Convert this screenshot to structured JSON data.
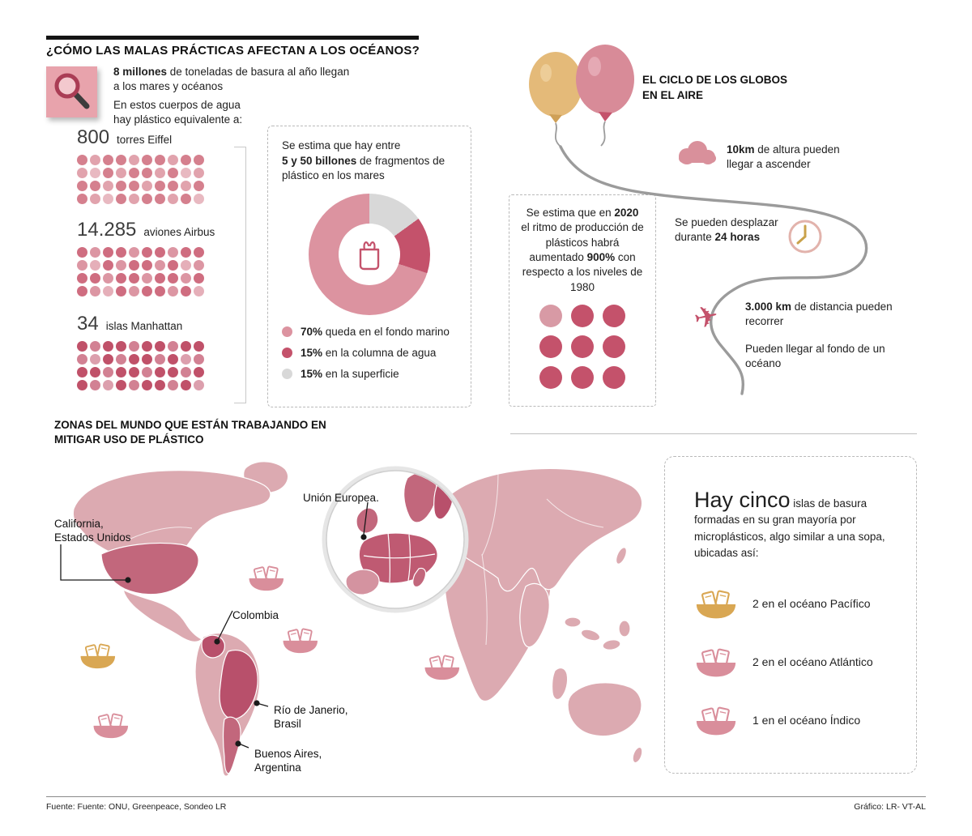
{
  "header": {
    "title": "¿CÓMO LAS MALAS PRÁCTICAS AFECTAN A LOS OCÉANOS?"
  },
  "palette": {
    "crimson": "#c4526b",
    "rose": "#d98a96",
    "rose_light": "#dc93a0",
    "map_light": "#dcaab1",
    "map_highlight": "#c2677c",
    "gold": "#d9a753",
    "gray_segment": "#d8d8d8"
  },
  "intro": {
    "stat_bold": "8 millones",
    "stat_rest": " de toneladas de basura al año llegan a los mares y océanos",
    "equiv_lead": "En estos cuerpos de agua hay plástico equivalente a:"
  },
  "equivalents": [
    {
      "value": "800",
      "label": "torres Eiffel",
      "dots": 40,
      "dot_color": "#d5808e"
    },
    {
      "value": "14.285",
      "label": "aviones Airbus",
      "dots": 40,
      "dot_color": "#cf6d80"
    },
    {
      "value": "34",
      "label": "islas Manhattan",
      "dots": 40,
      "dot_color": "#c05169"
    }
  ],
  "fragments_box": {
    "text_pre": "Se estima que hay entre",
    "text_bold": "5 y 50 billones",
    "text_post": " de fragmentos de plástico en los mares",
    "legend": [
      {
        "pct": "70%",
        "label": " queda en el fondo marino"
      },
      {
        "pct": "15%",
        "label": " en la columna de agua"
      },
      {
        "pct": "15%",
        "label": " en la superficie"
      }
    ]
  },
  "balloon_cycle": {
    "title": "EL CICLO DE LOS GLOBOS EN EL AIRE",
    "step1_bold": "10km",
    "step1_rest": " de altura pueden llegar a ascender",
    "step2_pre": "Se pueden desplazar durante ",
    "step2_bold": "24 horas",
    "step3_bold": "3.000 km",
    "step3_rest": " de distancia pueden recorrer",
    "step4": "Pueden llegar al fondo de un océano"
  },
  "production_box": {
    "text_pre": "Se estima que en ",
    "text_bold1": "2020",
    "text_mid": " el ritmo de producción de plásticos habrá aumentado ",
    "text_bold2": "900%",
    "text_post": " con respecto a los niveles de 1980",
    "dot_colors": [
      "#d89aa5",
      "#c4526b",
      "#c4526b",
      "#c4526b",
      "#c4526b",
      "#c4526b",
      "#c4526b",
      "#c4526b",
      "#c4526b"
    ]
  },
  "map_section": {
    "title": "ZONAS DEL MUNDO QUE ESTÁN TRABAJANDO EN MITIGAR USO DE PLÁSTICO",
    "labels": {
      "california": "California, Estados Unidos",
      "europe": "Unión Europea.",
      "colombia": "Colombia",
      "rio": "Río de Janerio, Brasil",
      "buenos_aires": "Buenos Aires, Argentina"
    }
  },
  "islands_box": {
    "lead_big": "Hay cinco",
    "lead_rest": " islas de basura formadas en su gran mayoría por microplásticos, algo similar a una sopa, ubicadas así:",
    "items": [
      {
        "label": "2 en el océano Pacífico",
        "color": "#d9a753"
      },
      {
        "label": "2 en el océano Atlántico",
        "color": "#d98e9b"
      },
      {
        "label": "1 en el océano Índico",
        "color": "#d98e9b"
      }
    ]
  },
  "footer": {
    "source": "Fuente: Fuente: ONU, Greenpeace, Sondeo LR",
    "credit": "Gráfico: LR- VT-AL"
  },
  "chart_data": [
    {
      "type": "pie",
      "title": "Se estima que hay entre 5 y 50 billones de fragmentos de plástico en los mares",
      "labels": [
        "queda en el fondo marino",
        "en la columna de agua",
        "en la superficie"
      ],
      "values": [
        70,
        15,
        15
      ],
      "colors": [
        "#dc93a0",
        "#c4526b",
        "#d8d8d8"
      ],
      "legend_position": "bottom"
    },
    {
      "type": "table",
      "title": "Plástico equivalente en mares y océanos",
      "categories": [
        "torres Eiffel",
        "aviones Airbus",
        "islas Manhattan"
      ],
      "values": [
        800,
        14285,
        34
      ]
    },
    {
      "type": "table",
      "title": "Aumento del ritmo de producción de plásticos (2020 vs niveles de 1980)",
      "categories": [
        "aumento estimado"
      ],
      "values": [
        "900%"
      ]
    }
  ]
}
